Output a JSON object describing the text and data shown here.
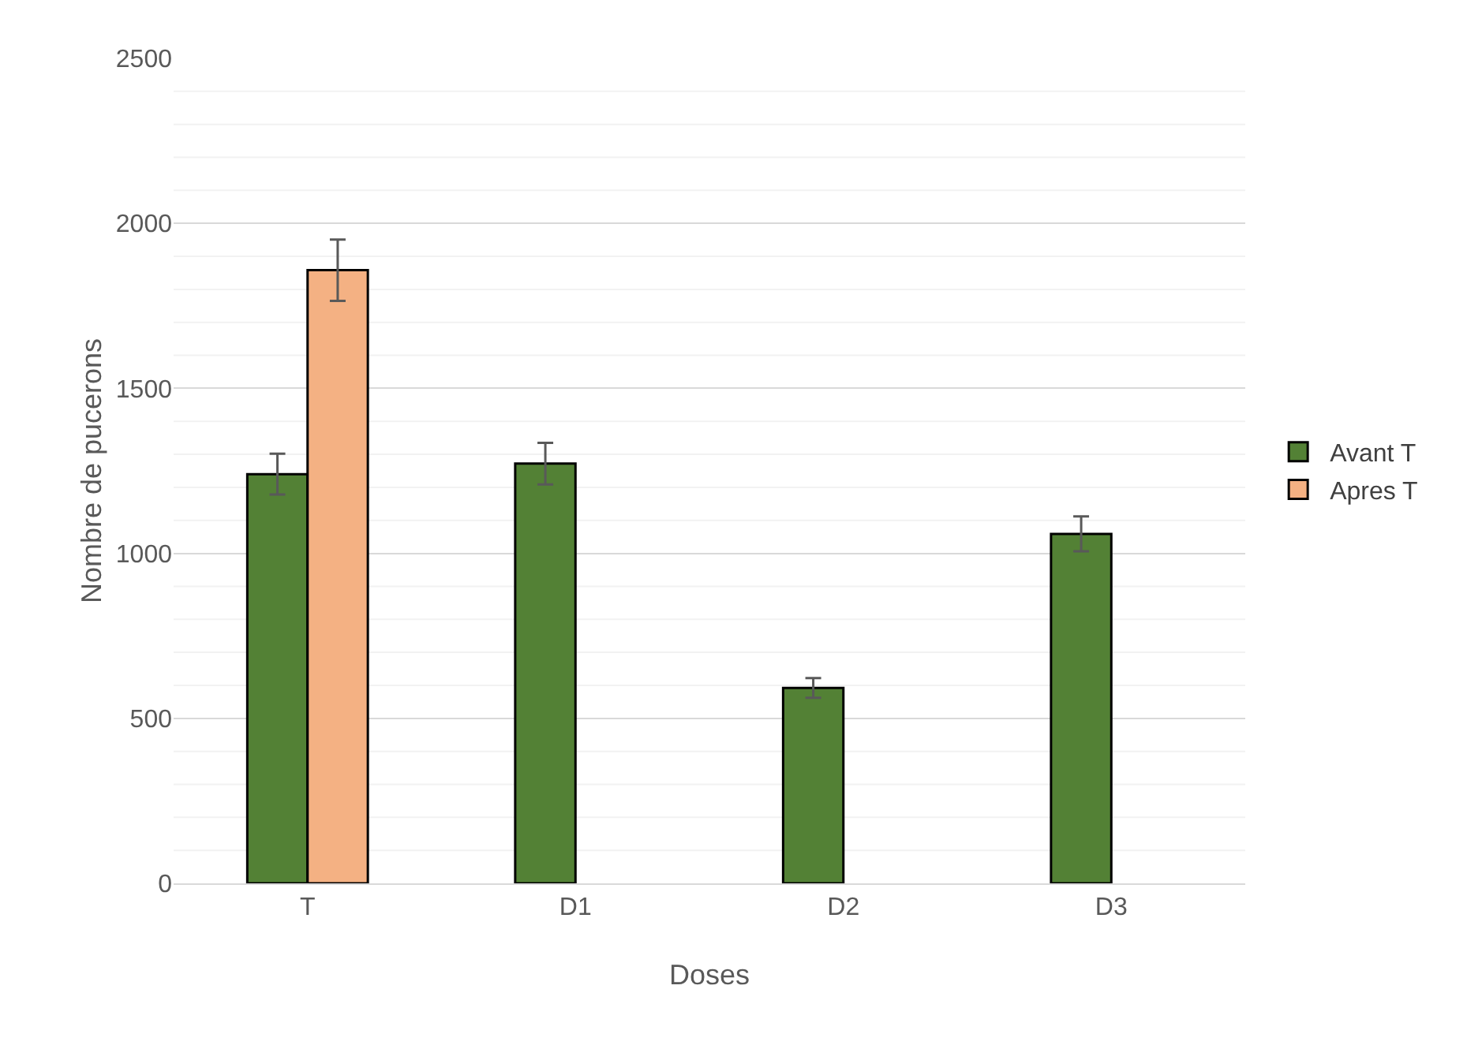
{
  "chart_data": {
    "type": "bar",
    "xlabel": "Doses",
    "ylabel": "Nombre de pucerons",
    "categories": [
      "T",
      "D1",
      "D2",
      "D3"
    ],
    "series": [
      {
        "name": "Avant T",
        "color": "#538135",
        "values": [
          1240,
          1272,
          592,
          1059
        ],
        "errors": [
          62,
          63,
          30,
          53
        ]
      },
      {
        "name": "Apres T",
        "color": "#f4b183",
        "values": [
          1858,
          0,
          0,
          0
        ],
        "errors": [
          93,
          null,
          null,
          null
        ]
      }
    ],
    "ylim": [
      0,
      2500
    ],
    "yticks": [
      0,
      500,
      1000,
      1500,
      2000,
      2500
    ],
    "grid": "y",
    "legend": "right"
  }
}
